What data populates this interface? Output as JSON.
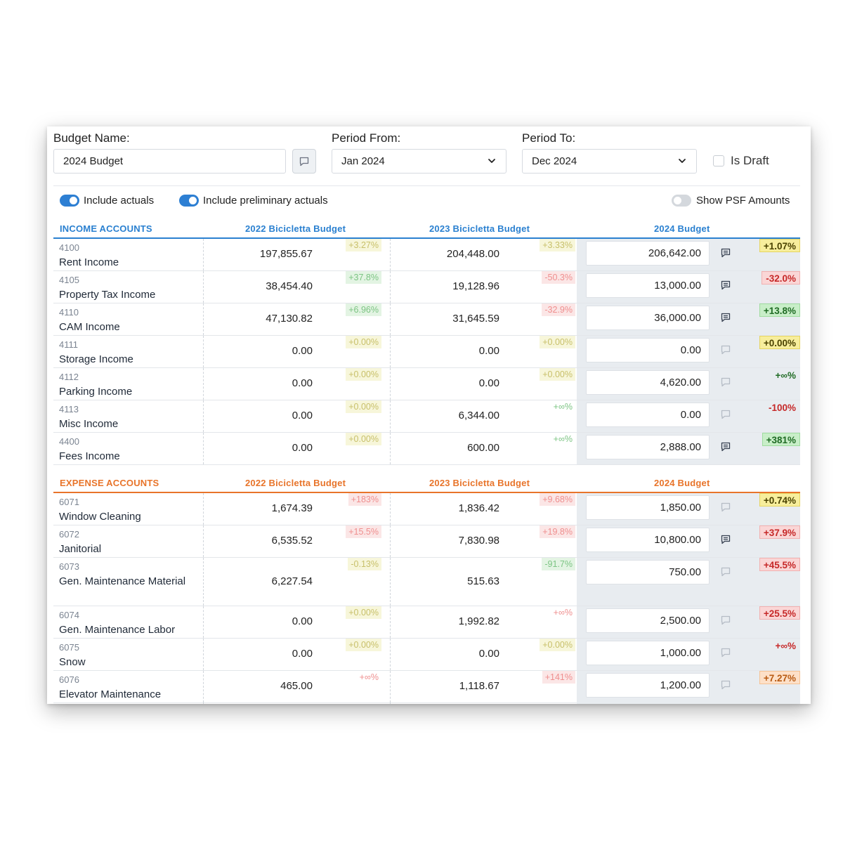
{
  "form": {
    "budget_name_label": "Budget Name:",
    "budget_name_value": "2024 Budget",
    "period_from_label": "Period From:",
    "period_from_value": "Jan 2024",
    "period_to_label": "Period To:",
    "period_to_value": "Dec 2024",
    "is_draft_label": "Is Draft",
    "is_draft_checked": false
  },
  "toggles": {
    "include_actuals": {
      "label": "Include actuals",
      "on": true
    },
    "include_preliminary": {
      "label": "Include preliminary actuals",
      "on": true
    },
    "show_psf": {
      "label": "Show PSF Amounts",
      "on": false
    }
  },
  "income": {
    "title": "INCOME ACCOUNTS",
    "col1": "2022 Bicicletta Budget",
    "col2": "2023 Bicicletta Budget",
    "col3": "2024 Budget",
    "rows": [
      {
        "code": "4100",
        "name": "Rent Income",
        "v2022": "197,855.67",
        "p2022": "+3.27%",
        "v2023": "204,448.00",
        "p2023": "+3.33%",
        "v2024": "206,642.00",
        "p2024": "+1.07%"
      },
      {
        "code": "4105",
        "name": "Property Tax Income",
        "v2022": "38,454.40",
        "p2022": "+37.8%",
        "v2023": "19,128.96",
        "p2023": "-50.3%",
        "v2024": "13,000.00",
        "p2024": "-32.0%"
      },
      {
        "code": "4110",
        "name": "CAM Income",
        "v2022": "47,130.82",
        "p2022": "+6.96%",
        "v2023": "31,645.59",
        "p2023": "-32.9%",
        "v2024": "36,000.00",
        "p2024": "+13.8%"
      },
      {
        "code": "4111",
        "name": "Storage Income",
        "v2022": "0.00",
        "p2022": "+0.00%",
        "v2023": "0.00",
        "p2023": "+0.00%",
        "v2024": "0.00",
        "p2024": "+0.00%"
      },
      {
        "code": "4112",
        "name": "Parking Income",
        "v2022": "0.00",
        "p2022": "+0.00%",
        "v2023": "0.00",
        "p2023": "+0.00%",
        "v2024": "4,620.00",
        "p2024": "+∞%"
      },
      {
        "code": "4113",
        "name": "Misc Income",
        "v2022": "0.00",
        "p2022": "+0.00%",
        "v2023": "6,344.00",
        "p2023": "+∞%",
        "v2024": "0.00",
        "p2024": "-100%"
      },
      {
        "code": "4400",
        "name": "Fees Income",
        "v2022": "0.00",
        "p2022": "+0.00%",
        "v2023": "600.00",
        "p2023": "+∞%",
        "v2024": "2,888.00",
        "p2024": "+381%"
      }
    ]
  },
  "expense": {
    "title": "EXPENSE ACCOUNTS",
    "col1": "2022 Bicicletta Budget",
    "col2": "2023 Bicicletta Budget",
    "col3": "2024 Budget",
    "rows": [
      {
        "code": "6071",
        "name": "Window Cleaning",
        "v2022": "1,674.39",
        "p2022": "+183%",
        "v2023": "1,836.42",
        "p2023": "+9.68%",
        "v2024": "1,850.00",
        "p2024": "+0.74%"
      },
      {
        "code": "6072",
        "name": "Janitorial",
        "v2022": "6,535.52",
        "p2022": "+15.5%",
        "v2023": "7,830.98",
        "p2023": "+19.8%",
        "v2024": "10,800.00",
        "p2024": "+37.9%"
      },
      {
        "code": "6073",
        "name": "Gen. Maintenance Material",
        "v2022": "6,227.54",
        "p2022": "-0.13%",
        "v2023": "515.63",
        "p2023": "-91.7%",
        "v2024": "750.00",
        "p2024": "+45.5%"
      },
      {
        "code": "6074",
        "name": "Gen. Maintenance Labor",
        "v2022": "0.00",
        "p2022": "+0.00%",
        "v2023": "1,992.82",
        "p2023": "+∞%",
        "v2024": "2,500.00",
        "p2024": "+25.5%"
      },
      {
        "code": "6075",
        "name": "Snow",
        "v2022": "0.00",
        "p2022": "+0.00%",
        "v2023": "0.00",
        "p2023": "+0.00%",
        "v2024": "1,000.00",
        "p2024": "+∞%"
      },
      {
        "code": "6076",
        "name": "Elevator Maintenance",
        "v2022": "465.00",
        "p2022": "+∞%",
        "v2023": "1,118.67",
        "p2023": "+141%",
        "v2024": "1,200.00",
        "p2024": "+7.27%"
      }
    ]
  }
}
